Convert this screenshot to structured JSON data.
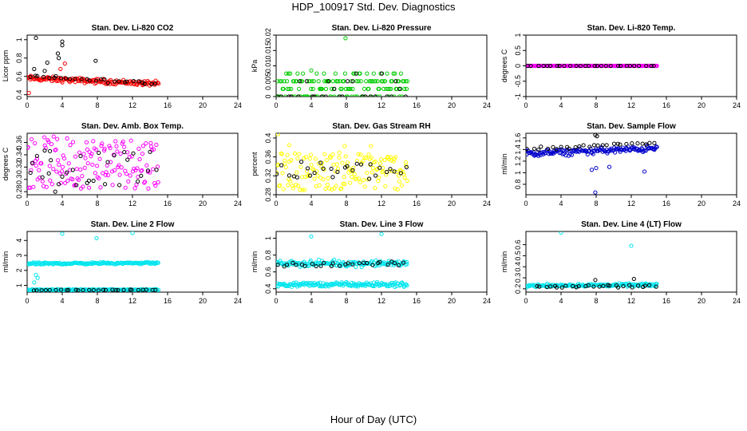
{
  "title": "HDP_100917  Std. Dev. Diagnostics",
  "xlabel": "Hour of Day (UTC)",
  "chart_data": [
    {
      "type": "scatter",
      "title": "Stan. Dev. Li-820 CO2",
      "ylabel": "Licor ppm",
      "xlim": [
        0,
        24
      ],
      "ylim": [
        0.38,
        1.05
      ],
      "xticks": [
        0,
        4,
        8,
        12,
        16,
        20,
        24
      ],
      "yticks": [
        0.4,
        0.6,
        0.8,
        1.0
      ],
      "series": [
        {
          "color": "#ff0000",
          "pattern": "band",
          "x_range": [
            0,
            15
          ],
          "center": [
            0.58,
            0.52
          ],
          "spread": 0.04,
          "outliers": [
            [
              3.8,
              0.68
            ],
            [
              4.3,
              0.74
            ],
            [
              0.2,
              0.42
            ]
          ]
        },
        {
          "color": "#000000",
          "pattern": "band",
          "x_range": [
            0,
            15
          ],
          "center": [
            0.6,
            0.52
          ],
          "spread": 0.03,
          "outliers": [
            [
              1.0,
              1.02
            ],
            [
              4.0,
              0.98
            ],
            [
              4.0,
              0.94
            ],
            [
              3.5,
              0.85
            ],
            [
              3.6,
              0.8
            ],
            [
              2.3,
              0.75
            ],
            [
              7.8,
              0.77
            ],
            [
              0.8,
              0.68
            ],
            [
              2.0,
              0.66
            ]
          ]
        }
      ]
    },
    {
      "type": "scatter",
      "title": "Stan. Dev. Li-820 Pressure",
      "ylabel": "kPa",
      "xlim": [
        0,
        24
      ],
      "ylim": [
        0,
        0.02
      ],
      "xticks": [
        0,
        4,
        8,
        12,
        16,
        20,
        24
      ],
      "yticks": [
        0,
        0.005,
        0.01,
        0.015,
        0.02
      ],
      "series": [
        {
          "color": "#00cc00",
          "pattern": "levels",
          "x_range": [
            0,
            15
          ],
          "levels": [
            0,
            0.0025,
            0.005,
            0.0075
          ],
          "weights": [
            3,
            3,
            3,
            2
          ],
          "outliers": [
            [
              7.9,
              0.019
            ],
            [
              4.0,
              0.0085
            ]
          ]
        },
        {
          "color": "#000000",
          "pattern": "levels",
          "x_range": [
            0,
            15
          ],
          "levels": [
            0,
            0.0025,
            0.005,
            0.0075
          ],
          "weights": [
            6,
            2,
            1,
            1
          ],
          "outliers": []
        }
      ]
    },
    {
      "type": "scatter",
      "title": "Stan. Dev. Li-820 Temp.",
      "ylabel": "degrees C",
      "xlim": [
        0,
        24
      ],
      "ylim": [
        -1,
        1
      ],
      "xticks": [
        0,
        4,
        8,
        12,
        16,
        20,
        24
      ],
      "yticks": [
        -1,
        -0.5,
        0,
        0.5,
        1
      ],
      "series": [
        {
          "color": "#ff00ff",
          "pattern": "line",
          "x_range": [
            0,
            15
          ],
          "value": 0,
          "outliers": []
        },
        {
          "color": "#000000",
          "pattern": "line",
          "x_range": [
            0,
            15
          ],
          "value": 0,
          "outliers": []
        }
      ]
    },
    {
      "type": "scatter",
      "title": "Stan. Dev. Amb. Box Temp.",
      "ylabel": "degrees C",
      "xlim": [
        0,
        24
      ],
      "ylim": [
        0.275,
        0.375
      ],
      "xticks": [
        0,
        4,
        8,
        12,
        16,
        20,
        24
      ],
      "yticks": [
        0.28,
        0.3,
        0.32,
        0.34,
        0.36
      ],
      "series": [
        {
          "color": "#ff00ff",
          "pattern": "uniform",
          "x_range": [
            0,
            15
          ],
          "y_range": [
            0.285,
            0.37
          ],
          "outliers": []
        },
        {
          "color": "#000000",
          "pattern": "uniform",
          "x_range": [
            0,
            15
          ],
          "y_range": [
            0.29,
            0.345
          ],
          "outliers": [
            [
              2.0,
              0.347
            ],
            [
              2.6,
              0.346
            ],
            [
              3.2,
              0.28
            ]
          ]
        }
      ]
    },
    {
      "type": "scatter",
      "title": "Stan. Dev. Gas Stream RH",
      "ylabel": "percent",
      "xlim": [
        0,
        24
      ],
      "ylim": [
        0.28,
        0.41
      ],
      "xticks": [
        0,
        4,
        8,
        12,
        16,
        20,
        24
      ],
      "yticks": [
        0.28,
        0.32,
        0.36,
        0.4
      ],
      "series": [
        {
          "color": "#ffff00",
          "pattern": "uniform",
          "x_range": [
            0,
            15
          ],
          "y_range": [
            0.29,
            0.37
          ],
          "outliers": [
            [
              0.2,
              0.408
            ],
            [
              1.5,
              0.385
            ],
            [
              7.8,
              0.383
            ],
            [
              10.8,
              0.383
            ]
          ]
        },
        {
          "color": "#000000",
          "pattern": "uniform",
          "x_range": [
            0,
            15
          ],
          "y_range": [
            0.31,
            0.35
          ],
          "outliers": []
        }
      ]
    },
    {
      "type": "scatter",
      "title": "Stan. Dev. Sample Flow",
      "ylabel": "ml/min",
      "xlim": [
        0,
        24
      ],
      "ylim": [
        0.62,
        1.68
      ],
      "xticks": [
        0,
        4,
        8,
        12,
        16,
        20,
        24
      ],
      "yticks": [
        0.8,
        1.0,
        1.2,
        1.4,
        1.6
      ],
      "series": [
        {
          "color": "#0000cc",
          "pattern": "band",
          "x_range": [
            0,
            15
          ],
          "center": [
            1.33,
            1.42
          ],
          "spread": 0.08,
          "outliers": [
            [
              7.9,
              0.66
            ],
            [
              8.0,
              1.08
            ],
            [
              9.5,
              1.1
            ],
            [
              13.5,
              1.02
            ],
            [
              7.5,
              1.05
            ]
          ]
        },
        {
          "color": "#000000",
          "pattern": "band",
          "x_range": [
            0,
            15
          ],
          "center": [
            1.4,
            1.52
          ],
          "spread": 0.05,
          "outliers": [
            [
              7.9,
              1.65
            ],
            [
              8.1,
              1.63
            ]
          ]
        }
      ]
    },
    {
      "type": "scatter",
      "title": "Stan. Dev. Line 2 Flow",
      "ylabel": "ml/min",
      "xlim": [
        0,
        24
      ],
      "ylim": [
        0.55,
        4.6
      ],
      "xticks": [
        0,
        4,
        8,
        12,
        16,
        20,
        24
      ],
      "yticks": [
        1,
        2,
        3,
        4
      ],
      "series": [
        {
          "color": "#00e5ee",
          "pattern": "band",
          "x_range": [
            0,
            15
          ],
          "center": [
            2.45,
            2.5
          ],
          "spread": 0.1,
          "outliers": [
            [
              4.0,
              4.45
            ],
            [
              7.9,
              4.15
            ],
            [
              12.0,
              4.5
            ],
            [
              0.8,
              1.2
            ],
            [
              1.2,
              1.5
            ],
            [
              1.0,
              1.7
            ]
          ]
        },
        {
          "color": "#00e5ee",
          "pattern": "band",
          "x_range": [
            0,
            15
          ],
          "center": [
            0.7,
            0.72
          ],
          "spread": 0.06,
          "outliers": []
        },
        {
          "color": "#000000",
          "pattern": "band",
          "x_range": [
            0.5,
            15
          ],
          "center": [
            0.68,
            0.7
          ],
          "spread": 0.03,
          "outliers": []
        }
      ]
    },
    {
      "type": "scatter",
      "title": "Stan. Dev. Line 3 Flow",
      "ylabel": "ml/min",
      "xlim": [
        0,
        24
      ],
      "ylim": [
        0.36,
        1.08
      ],
      "xticks": [
        0,
        4,
        8,
        12,
        16,
        20,
        24
      ],
      "yticks": [
        0.4,
        0.6,
        0.8,
        1.0
      ],
      "series": [
        {
          "color": "#00e5ee",
          "pattern": "band",
          "x_range": [
            0,
            15
          ],
          "center": [
            0.7,
            0.7
          ],
          "spread": 0.05,
          "outliers": [
            [
              4.0,
              1.02
            ],
            [
              12.0,
              1.05
            ]
          ]
        },
        {
          "color": "#00e5ee",
          "pattern": "band",
          "x_range": [
            0,
            15
          ],
          "center": [
            0.45,
            0.45
          ],
          "spread": 0.04,
          "outliers": []
        },
        {
          "color": "#000000",
          "pattern": "band",
          "x_range": [
            0,
            15
          ],
          "center": [
            0.68,
            0.7
          ],
          "spread": 0.04,
          "outliers": []
        }
      ]
    },
    {
      "type": "scatter",
      "title": "Stan. Dev. Line 4 (LT) Flow",
      "ylabel": "ml/min",
      "xlim": [
        0,
        24
      ],
      "ylim": [
        0.17,
        0.72
      ],
      "xticks": [
        0,
        4,
        8,
        12,
        16,
        20,
        24
      ],
      "yticks": [
        0.2,
        0.3,
        0.4,
        0.5,
        0.6
      ],
      "series": [
        {
          "color": "#00e5ee",
          "pattern": "band",
          "x_range": [
            0,
            15
          ],
          "center": [
            0.23,
            0.235
          ],
          "spread": 0.02,
          "outliers": [
            [
              4.0,
              0.71
            ],
            [
              12.0,
              0.59
            ]
          ]
        },
        {
          "color": "#000000",
          "pattern": "band",
          "x_range": [
            1,
            15
          ],
          "center": [
            0.22,
            0.23
          ],
          "spread": 0.02,
          "outliers": [
            [
              7.9,
              0.28
            ],
            [
              12.3,
              0.29
            ]
          ]
        }
      ]
    }
  ]
}
